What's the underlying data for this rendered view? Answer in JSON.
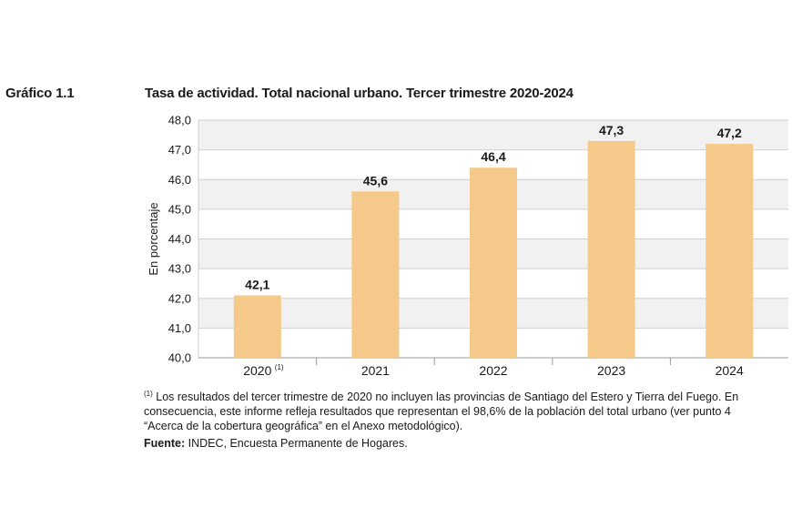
{
  "figure": {
    "label": "Gráfico 1.1",
    "title": "Tasa de actividad. Total nacional urbano. Tercer trimestre 2020-2024"
  },
  "chart_data": {
    "type": "bar",
    "title": "Tasa de actividad. Total nacional urbano. Tercer trimestre 2020-2024",
    "categories": [
      "2020",
      "2021",
      "2022",
      "2023",
      "2024"
    ],
    "category_notes": [
      "(1)",
      "",
      "",
      "",
      ""
    ],
    "values": [
      42.1,
      45.6,
      46.4,
      47.3,
      47.2
    ],
    "value_labels": [
      "42,1",
      "45,6",
      "46,4",
      "47,3",
      "47,2"
    ],
    "xlabel": "",
    "ylabel": "En porcentaje",
    "ylim": [
      40.0,
      48.0
    ],
    "yticks": [
      40.0,
      41.0,
      42.0,
      43.0,
      44.0,
      45.0,
      46.0,
      47.0,
      48.0
    ],
    "ytick_labels": [
      "40,0",
      "41,0",
      "42,0",
      "43,0",
      "44,0",
      "45,0",
      "46,0",
      "47,0",
      "48,0"
    ],
    "grid": true,
    "bar_color": "#F5C98A",
    "grid_color": "#cfcfcf",
    "band_color": "#f1f1f1"
  },
  "footnote": {
    "marker": "(1)",
    "line1": " Los resultados del tercer trimestre de 2020 no incluyen las provincias de Santiago del Estero y Tierra del Fuego. En",
    "line2": "consecuencia, este informe refleja resultados que representan el 98,6% de la población del total urbano (ver punto 4",
    "line3": "“Acerca de la cobertura geográfica” en el Anexo metodológico)."
  },
  "source": {
    "label": "Fuente:",
    "text": " INDEC, Encuesta Permanente de Hogares."
  }
}
